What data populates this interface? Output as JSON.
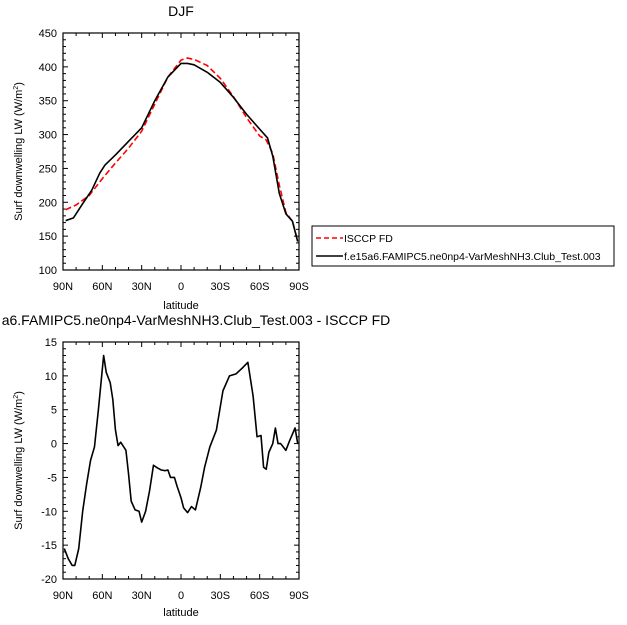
{
  "top_title": "DJF",
  "bottom_title": "a6.FAMIPC5.ne0np4-VarMeshNH3.Club_Test.003 - ISCCP FD",
  "legend": {
    "items": [
      "ISCCP FD",
      "f.e15a6.FAMIPC5.ne0np4-VarMeshNH3.Club_Test.003"
    ]
  },
  "colors": {
    "obs": "#ff0000",
    "model": "#000000",
    "frame": "#000000"
  },
  "chart_data": [
    {
      "type": "line",
      "title": "DJF",
      "xlabel": "latitude",
      "ylabel": "Surf downwelling LW (W/m²)",
      "ylim": [
        100,
        450
      ],
      "xlim": [
        90,
        -90
      ],
      "x_axis_reversed": true,
      "xtick_values": [
        90,
        60,
        30,
        0,
        -30,
        -60,
        -90
      ],
      "xtick_labels": [
        "90N",
        "60N",
        "30N",
        "0",
        "30S",
        "60S",
        "90S"
      ],
      "ytick_labels": [
        "100",
        "150",
        "200",
        "250",
        "300",
        "350",
        "400",
        "450"
      ],
      "ytick_values": [
        100,
        150,
        200,
        250,
        300,
        350,
        400,
        450
      ],
      "grid": false,
      "legend_placement": "outside-right",
      "series": [
        {
          "name": "ISCCP FD",
          "style": "dashed",
          "color": "#ff0000",
          "x": [
            88,
            80,
            70,
            60,
            50,
            40,
            30,
            20,
            10,
            0,
            -5,
            -10,
            -20,
            -30,
            -40,
            -50,
            -60,
            -65,
            -70,
            -75,
            -80,
            -85,
            -89
          ],
          "y": [
            189,
            196,
            210,
            235,
            258,
            280,
            305,
            345,
            385,
            410,
            413,
            411,
            402,
            383,
            356,
            325,
            298,
            292,
            272,
            225,
            185,
            172,
            143
          ]
        },
        {
          "name": "f.e15a6.FAMIPC5.ne0np4-VarMeshNH3.Club_Test.003",
          "style": "solid",
          "color": "#000000",
          "x": [
            88,
            82,
            75,
            68,
            62,
            58,
            50,
            40,
            30,
            20,
            10,
            0,
            -5,
            -10,
            -20,
            -30,
            -40,
            -50,
            -60,
            -66,
            -70,
            -75,
            -80,
            -85,
            -89
          ],
          "y": [
            173,
            177,
            198,
            218,
            243,
            255,
            270,
            290,
            310,
            350,
            385,
            405,
            405,
            403,
            392,
            377,
            355,
            330,
            308,
            295,
            268,
            213,
            183,
            172,
            142
          ]
        }
      ]
    },
    {
      "type": "line",
      "title": "a6.FAMIPC5.ne0np4-VarMeshNH3.Club_Test.003 - ISCCP FD",
      "xlabel": "latitude",
      "ylabel": "Surf downwelling LW (W/m²)",
      "ylim": [
        -20,
        15
      ],
      "xlim": [
        90,
        -90
      ],
      "x_axis_reversed": true,
      "xtick_values": [
        90,
        60,
        30,
        0,
        -30,
        -60,
        -90
      ],
      "xtick_labels": [
        "90N",
        "60N",
        "30N",
        "0",
        "30S",
        "60S",
        "90S"
      ],
      "ytick_labels": [
        "-20",
        "-15",
        "-10",
        "-5",
        "0",
        "5",
        "10",
        "15"
      ],
      "ytick_values": [
        -20,
        -15,
        -10,
        -5,
        0,
        5,
        10,
        15
      ],
      "grid": false,
      "series": [
        {
          "color": "#000000",
          "x": [
            89,
            86,
            83,
            81,
            78,
            75,
            72,
            69,
            66,
            63,
            61,
            59,
            57,
            54,
            52,
            50,
            48,
            46,
            42,
            40,
            38,
            35,
            32,
            30,
            27,
            24,
            21,
            18,
            15,
            12,
            10,
            8,
            5,
            3,
            0,
            -2,
            -5,
            -8,
            -11,
            -15,
            -18,
            -22,
            -27,
            -32,
            -37,
            -42,
            -47,
            -51,
            -55,
            -58,
            -61,
            -63,
            -65,
            -67,
            -70,
            -72,
            -74,
            -76,
            -79,
            -82,
            -86,
            -89
          ],
          "y": [
            -15.5,
            -17,
            -18,
            -18,
            -15.5,
            -10,
            -6,
            -2.5,
            -0.5,
            5,
            9,
            13,
            10.5,
            9,
            6.5,
            2,
            -0.3,
            0.2,
            -1,
            -4.5,
            -8.5,
            -9.8,
            -10,
            -11.6,
            -10,
            -7,
            -3.2,
            -3.6,
            -3.9,
            -4,
            -3.9,
            -5,
            -5,
            -6.3,
            -8,
            -9.5,
            -10.2,
            -9.3,
            -9.8,
            -6.5,
            -3.5,
            -0.5,
            2,
            7.8,
            10,
            10.3,
            11.2,
            12,
            7,
            1,
            1.2,
            -3.5,
            -3.8,
            -1.3,
            0,
            2.3,
            0,
            0,
            0,
            0,
            0,
            0
          ]
        }
      ]
    }
  ]
}
